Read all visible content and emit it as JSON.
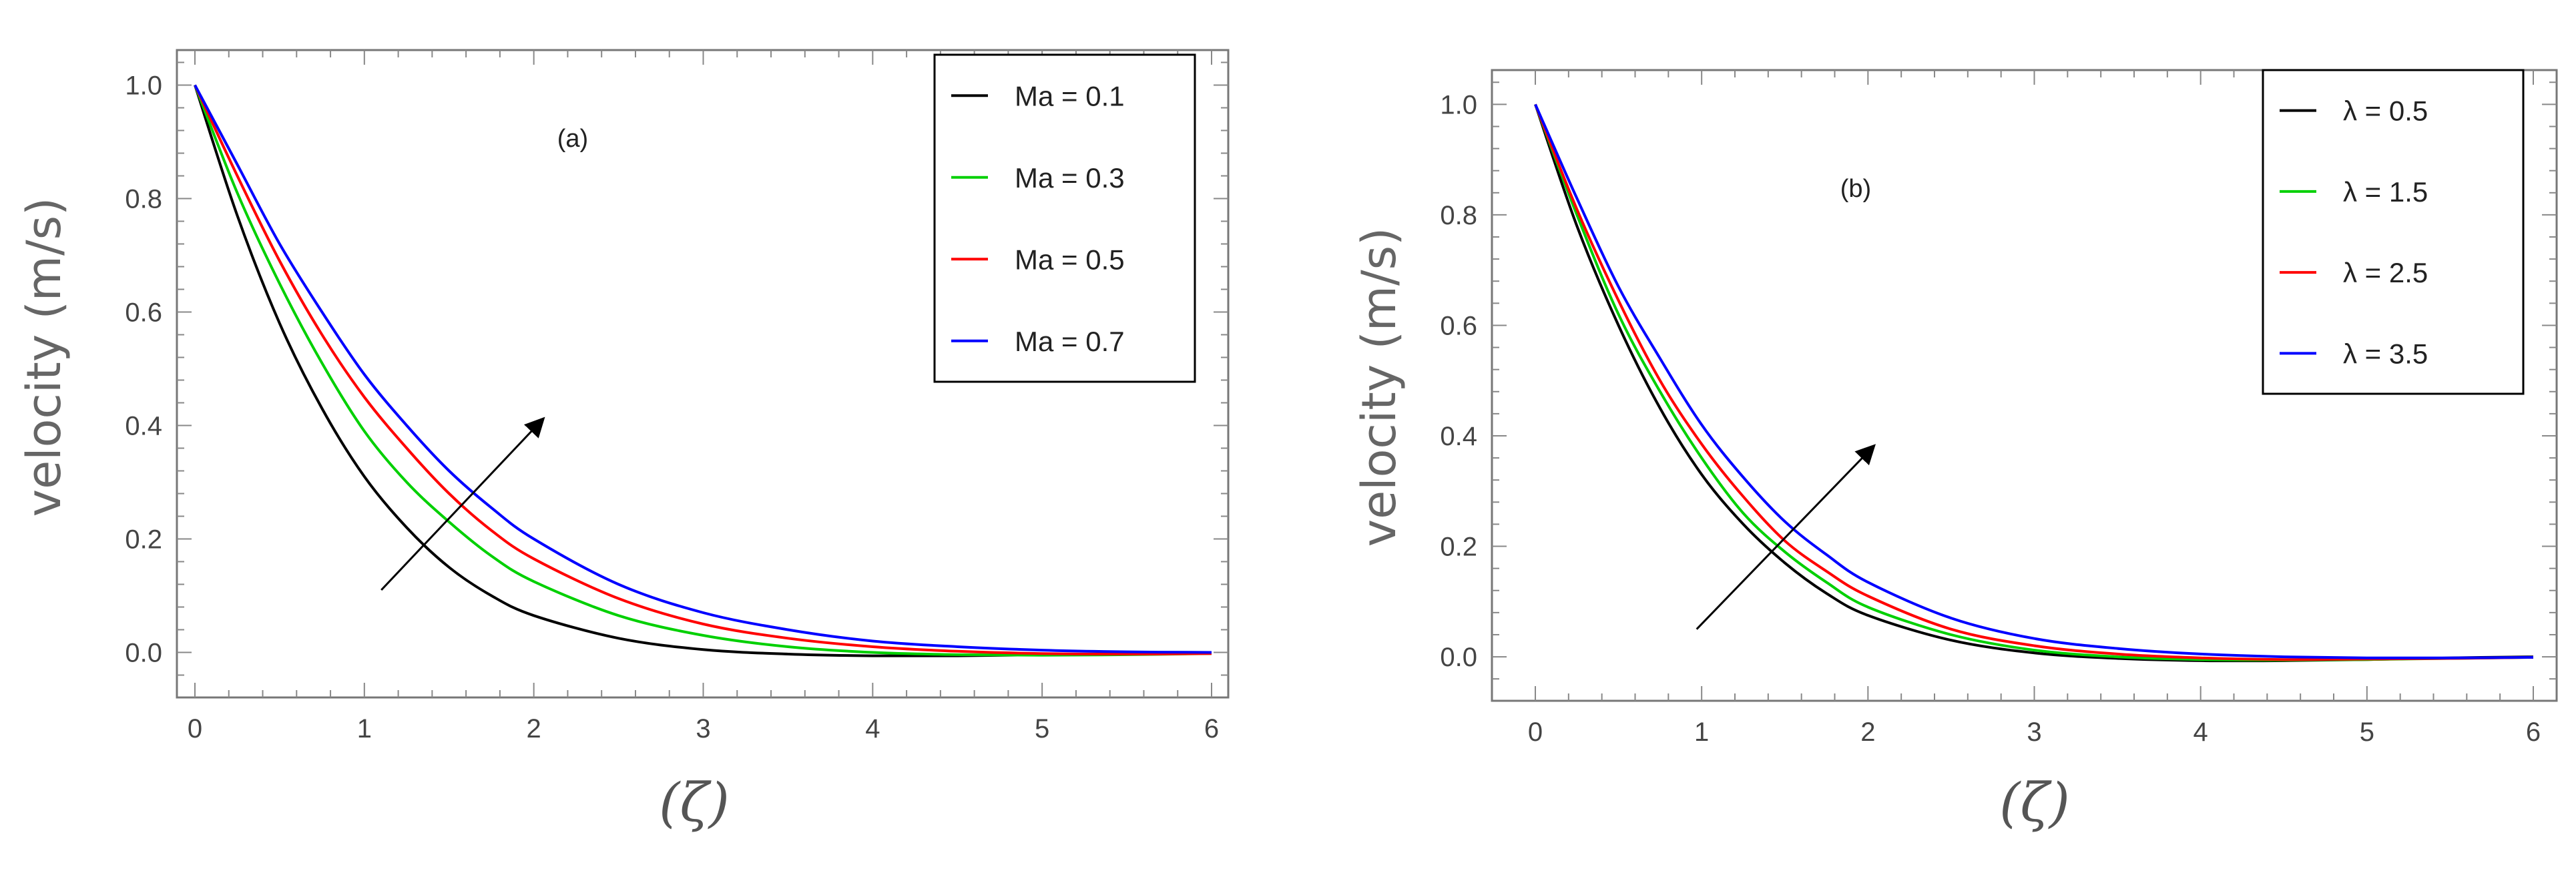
{
  "chart_data": [
    {
      "type": "line",
      "panel_label": "(a)",
      "xlabel": "(ζ)",
      "ylabel": "velocity (m/s)",
      "xlim": [
        0,
        6
      ],
      "ylim": [
        -0.07,
        1.05
      ],
      "xticks": [
        0,
        1,
        2,
        3,
        4,
        5,
        6
      ],
      "yticks": [
        0.0,
        0.2,
        0.4,
        0.6,
        0.8,
        1.0
      ],
      "xtick_labels": [
        "0",
        "1",
        "2",
        "3",
        "4",
        "5",
        "6"
      ],
      "ytick_labels": [
        "0.0",
        "0.2",
        "0.4",
        "0.6",
        "0.8",
        "1.0"
      ],
      "legend_position": "top-right",
      "arrow": {
        "from": [
          1.1,
          0.11
        ],
        "to": [
          2.05,
          0.41
        ],
        "meaning": "increasing Ma"
      },
      "series": [
        {
          "name": "Ma = 0.1",
          "color": "#000000",
          "x": [
            0,
            0.25,
            0.5,
            0.75,
            1,
            1.25,
            1.5,
            1.75,
            2,
            2.5,
            3,
            3.5,
            4,
            4.5,
            5,
            5.5,
            6
          ],
          "values": [
            1.0,
            0.77,
            0.58,
            0.43,
            0.31,
            0.22,
            0.15,
            0.1,
            0.065,
            0.025,
            0.005,
            -0.003,
            -0.006,
            -0.006,
            -0.004,
            -0.002,
            0.0
          ]
        },
        {
          "name": "Ma = 0.3",
          "color": "#00d000",
          "x": [
            0,
            0.25,
            0.5,
            0.75,
            1,
            1.25,
            1.5,
            1.75,
            2,
            2.5,
            3,
            3.5,
            4,
            4.5,
            5,
            5.5,
            6
          ],
          "values": [
            1.0,
            0.81,
            0.65,
            0.51,
            0.39,
            0.3,
            0.23,
            0.17,
            0.125,
            0.065,
            0.03,
            0.01,
            0.0,
            -0.004,
            -0.005,
            -0.004,
            -0.002
          ]
        },
        {
          "name": "Ma = 0.5",
          "color": "#ff0000",
          "x": [
            0,
            0.25,
            0.5,
            0.75,
            1,
            1.25,
            1.5,
            1.75,
            2,
            2.5,
            3,
            3.5,
            4,
            4.5,
            5,
            5.5,
            6
          ],
          "values": [
            1.0,
            0.84,
            0.69,
            0.56,
            0.45,
            0.36,
            0.28,
            0.215,
            0.165,
            0.095,
            0.05,
            0.025,
            0.01,
            0.002,
            -0.002,
            -0.003,
            -0.002
          ]
        },
        {
          "name": "Ma = 0.7",
          "color": "#0000ff",
          "x": [
            0,
            0.25,
            0.5,
            0.75,
            1,
            1.25,
            1.5,
            1.75,
            2,
            2.5,
            3,
            3.5,
            4,
            4.5,
            5,
            5.5,
            6
          ],
          "values": [
            1.0,
            0.86,
            0.72,
            0.6,
            0.49,
            0.4,
            0.32,
            0.255,
            0.2,
            0.12,
            0.07,
            0.04,
            0.02,
            0.01,
            0.004,
            0.001,
            0.0
          ]
        }
      ]
    },
    {
      "type": "line",
      "panel_label": "(b)",
      "xlabel": "(ζ)",
      "ylabel": "velocity (m/s)",
      "xlim": [
        0,
        6
      ],
      "ylim": [
        -0.07,
        1.05
      ],
      "xticks": [
        0,
        1,
        2,
        3,
        4,
        5,
        6
      ],
      "yticks": [
        0.0,
        0.2,
        0.4,
        0.6,
        0.8,
        1.0
      ],
      "xtick_labels": [
        "0",
        "1",
        "2",
        "3",
        "4",
        "5",
        "6"
      ],
      "ytick_labels": [
        "0.0",
        "0.2",
        "0.4",
        "0.6",
        "0.8",
        "1.0"
      ],
      "legend_position": "top-right",
      "arrow": {
        "from": [
          0.97,
          0.05
        ],
        "to": [
          2.03,
          0.38
        ],
        "meaning": "increasing λ"
      },
      "series": [
        {
          "name": "λ = 0.5",
          "color": "#000000",
          "x": [
            0,
            0.25,
            0.5,
            0.75,
            1,
            1.25,
            1.5,
            1.75,
            2,
            2.5,
            3,
            3.5,
            4,
            4.5,
            5,
            5.5,
            6
          ],
          "values": [
            1.0,
            0.78,
            0.6,
            0.45,
            0.33,
            0.24,
            0.17,
            0.115,
            0.075,
            0.03,
            0.007,
            -0.003,
            -0.007,
            -0.007,
            -0.005,
            -0.002,
            0.0
          ]
        },
        {
          "name": "λ = 1.5",
          "color": "#00d000",
          "x": [
            0,
            0.25,
            0.5,
            0.75,
            1,
            1.25,
            1.5,
            1.75,
            2,
            2.5,
            3,
            3.5,
            4,
            4.5,
            5,
            5.5,
            6
          ],
          "values": [
            1.0,
            0.8,
            0.62,
            0.48,
            0.36,
            0.26,
            0.19,
            0.135,
            0.09,
            0.04,
            0.012,
            0.0,
            -0.005,
            -0.006,
            -0.005,
            -0.003,
            -0.001
          ]
        },
        {
          "name": "λ = 2.5",
          "color": "#ff0000",
          "x": [
            0,
            0.25,
            0.5,
            0.75,
            1,
            1.25,
            1.5,
            1.75,
            2,
            2.5,
            3,
            3.5,
            4,
            4.5,
            5,
            5.5,
            6
          ],
          "values": [
            1.0,
            0.81,
            0.645,
            0.5,
            0.385,
            0.29,
            0.21,
            0.155,
            0.11,
            0.05,
            0.02,
            0.005,
            -0.002,
            -0.005,
            -0.004,
            -0.003,
            -0.001
          ]
        },
        {
          "name": "λ = 3.5",
          "color": "#0000ff",
          "x": [
            0,
            0.25,
            0.5,
            0.75,
            1,
            1.25,
            1.5,
            1.75,
            2,
            2.5,
            3,
            3.5,
            4,
            4.5,
            5,
            5.5,
            6
          ],
          "values": [
            1.0,
            0.83,
            0.67,
            0.54,
            0.42,
            0.325,
            0.245,
            0.185,
            0.135,
            0.07,
            0.033,
            0.015,
            0.005,
            0.0,
            -0.002,
            -0.002,
            -0.001
          ]
        }
      ]
    }
  ]
}
